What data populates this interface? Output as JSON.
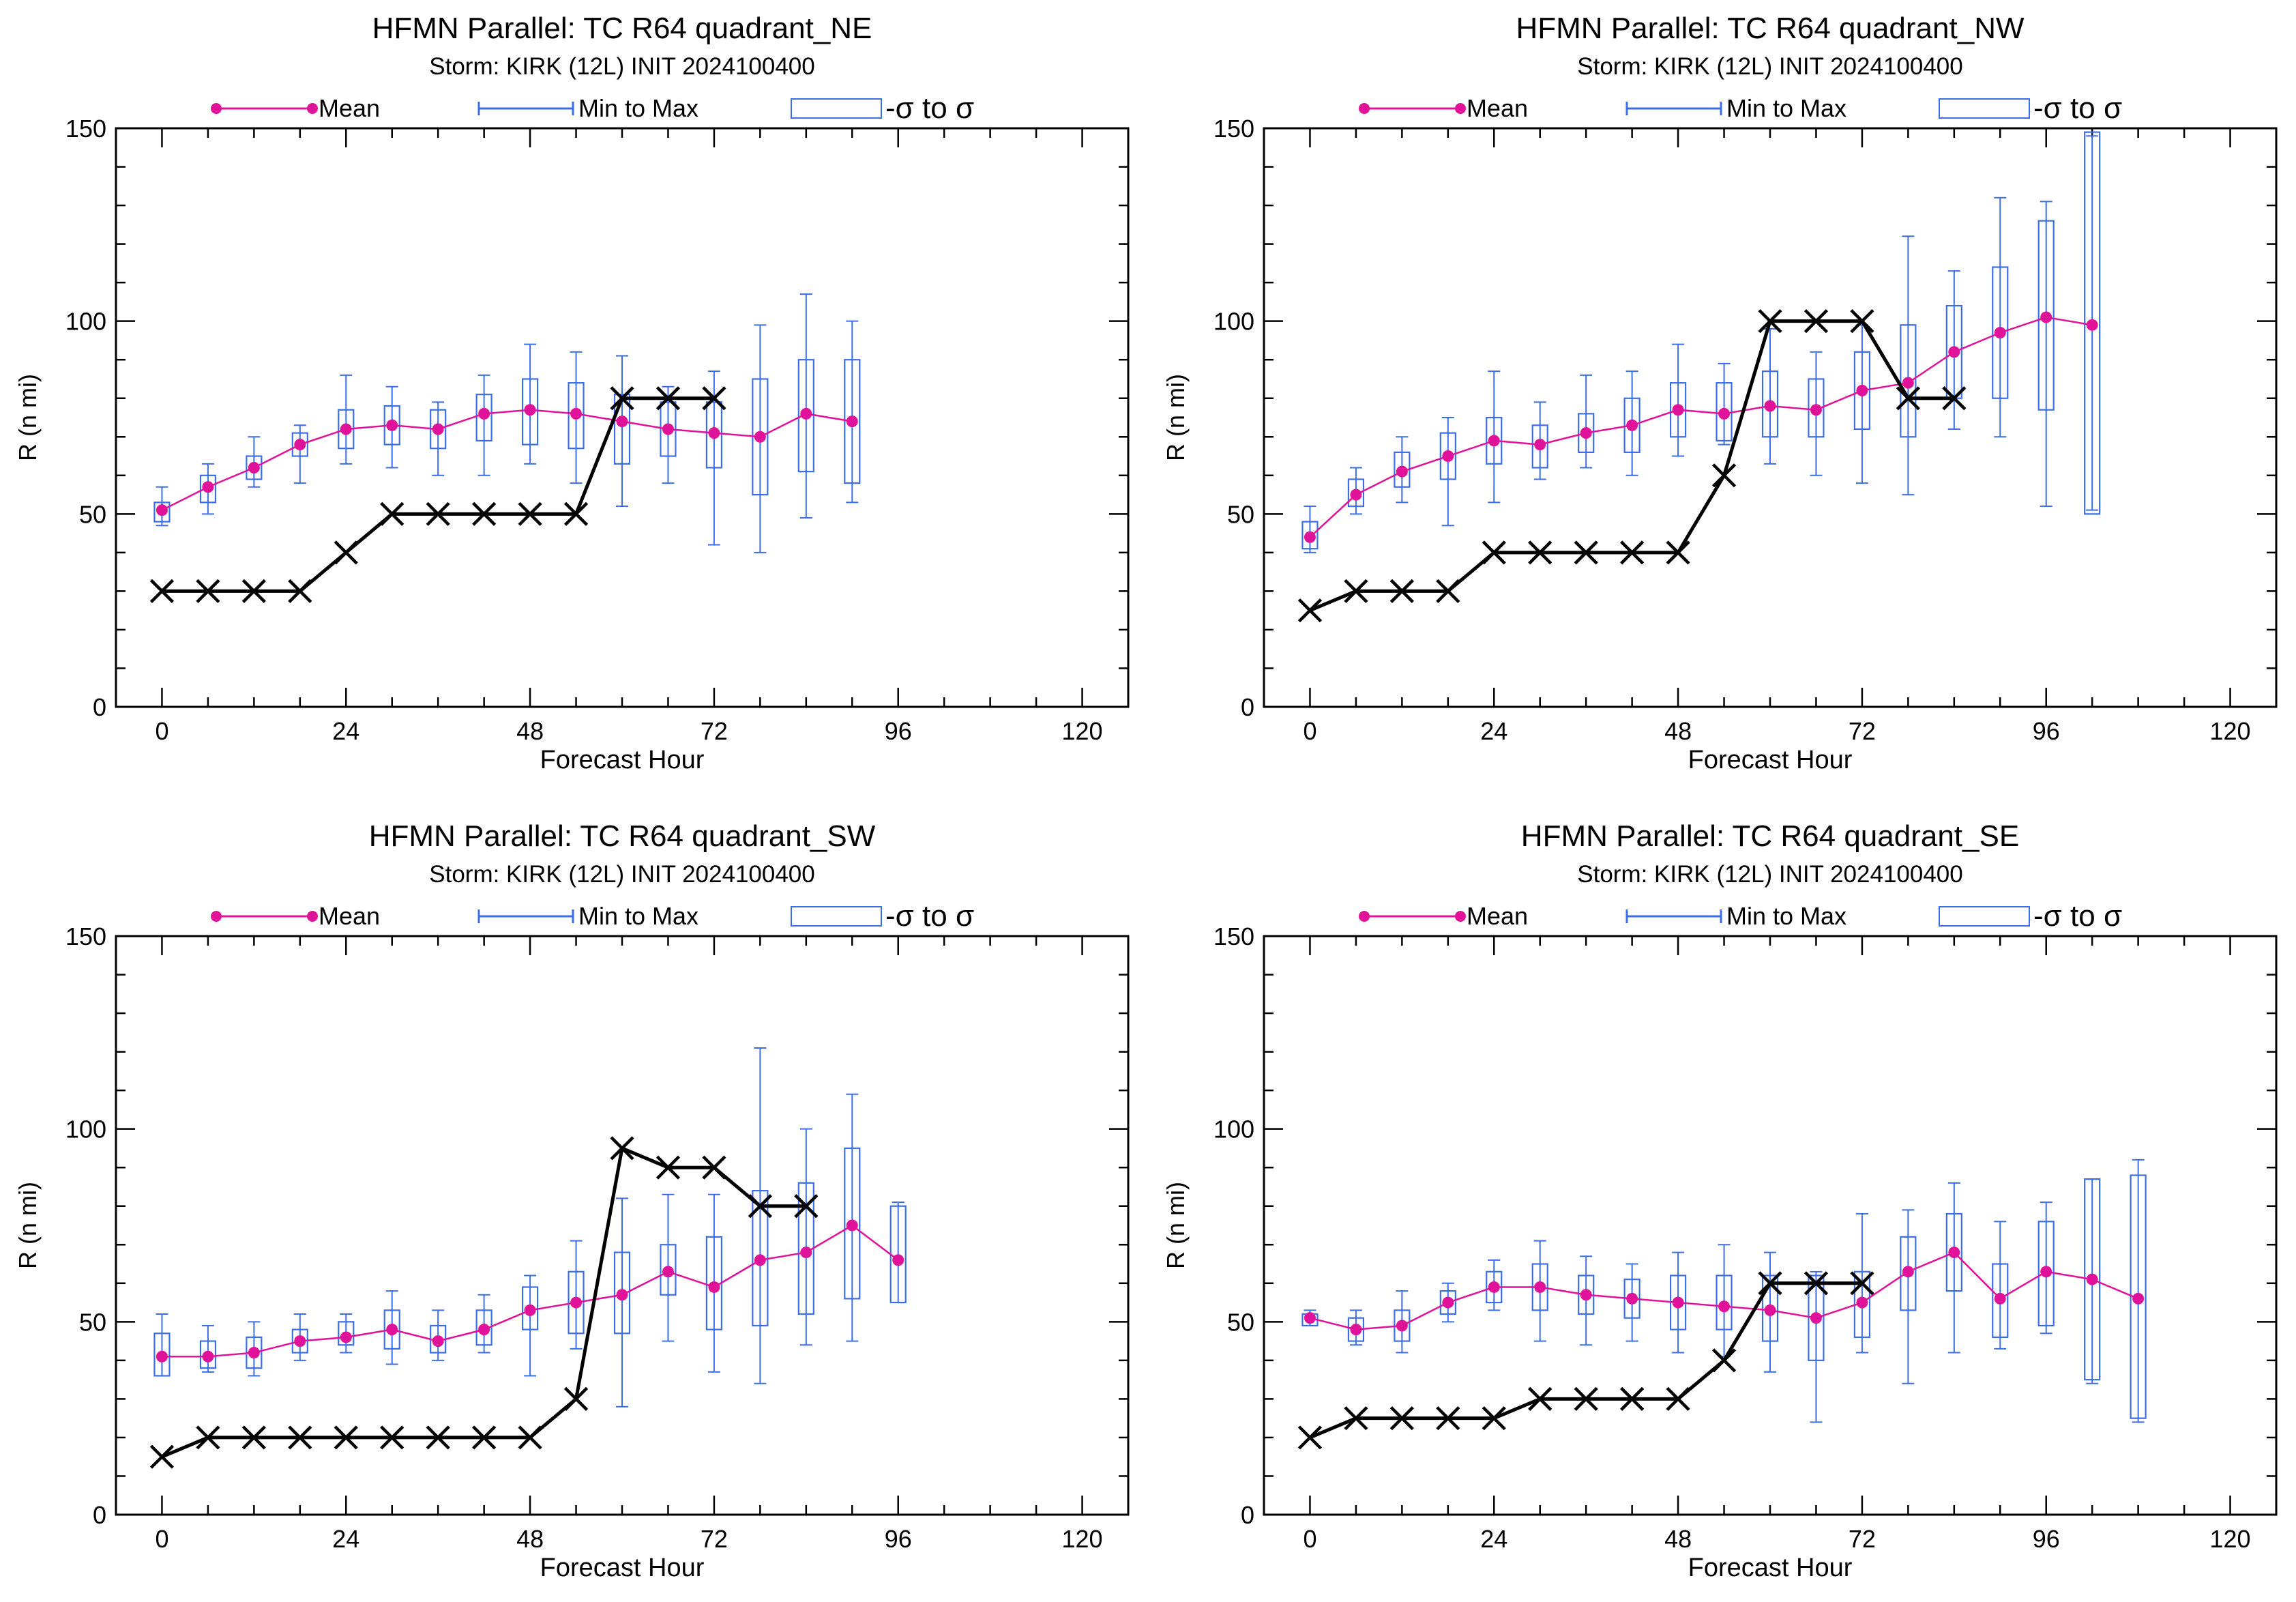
{
  "chart_data": [
    {
      "type": "line",
      "title": "HFMN Parallel: TC  R64 quadrant_NE",
      "subtitle": "Storm: KIRK (12L) INIT 2024100400",
      "xlabel": "Forecast Hour",
      "ylabel": "R (n mi)",
      "xlim": [
        -6,
        126
      ],
      "ylim": [
        0,
        150
      ],
      "xticks": [
        "0",
        "24",
        "48",
        "72",
        "96",
        "120"
      ],
      "yticks": [
        "0",
        "50",
        "100",
        "150"
      ],
      "legend": {
        "mean": "Mean",
        "range": "Min to Max",
        "sigma": "-σ to σ",
        "position": "top"
      },
      "colors": {
        "mean": "#e0129a",
        "range": "#3d6ee8",
        "best_track": "#000000"
      },
      "series": [
        {
          "name": "Mean",
          "x": [
            0,
            6,
            12,
            18,
            24,
            30,
            36,
            42,
            48,
            54,
            60,
            66,
            72,
            78,
            84,
            90
          ],
          "values": [
            51,
            57,
            62,
            68,
            72,
            73,
            72,
            76,
            77,
            76,
            74,
            72,
            71,
            70,
            76,
            74
          ]
        },
        {
          "name": "Min to Max",
          "x": [
            0,
            6,
            12,
            18,
            24,
            30,
            36,
            42,
            48,
            54,
            60,
            66,
            72,
            78,
            84,
            90
          ],
          "low": [
            47,
            50,
            57,
            58,
            63,
            62,
            60,
            60,
            63,
            58,
            52,
            58,
            42,
            40,
            49,
            53
          ],
          "high": [
            57,
            63,
            70,
            73,
            86,
            83,
            79,
            86,
            94,
            92,
            91,
            83,
            87,
            99,
            107,
            100
          ]
        },
        {
          "name": "-σ to σ",
          "x": [
            0,
            6,
            12,
            18,
            24,
            30,
            36,
            42,
            48,
            54,
            60,
            66,
            72,
            78,
            84,
            90
          ],
          "low": [
            48,
            53,
            59,
            65,
            67,
            68,
            67,
            69,
            68,
            67,
            63,
            65,
            62,
            55,
            61,
            58
          ],
          "high": [
            53,
            60,
            65,
            71,
            77,
            78,
            77,
            81,
            85,
            84,
            81,
            79,
            79,
            85,
            90,
            90
          ]
        },
        {
          "name": "",
          "x": [
            0,
            6,
            12,
            18,
            24,
            30,
            36,
            42,
            48,
            54,
            60,
            66,
            72
          ],
          "values": [
            30,
            30,
            30,
            30,
            40,
            50,
            50,
            50,
            50,
            50,
            80,
            80,
            80
          ]
        }
      ]
    },
    {
      "type": "line",
      "title": "HFMN Parallel: TC  R64 quadrant_NW",
      "subtitle": "Storm: KIRK (12L) INIT 2024100400",
      "xlabel": "Forecast Hour",
      "ylabel": "R (n mi)",
      "xlim": [
        -6,
        126
      ],
      "ylim": [
        0,
        150
      ],
      "xticks": [
        "0",
        "24",
        "48",
        "72",
        "96",
        "120"
      ],
      "yticks": [
        "0",
        "50",
        "100",
        "150"
      ],
      "legend": {
        "mean": "Mean",
        "range": "Min to Max",
        "sigma": "-σ to σ",
        "position": "top"
      },
      "colors": {
        "mean": "#e0129a",
        "range": "#3d6ee8",
        "best_track": "#000000"
      },
      "series": [
        {
          "name": "Mean",
          "x": [
            0,
            6,
            12,
            18,
            24,
            30,
            36,
            42,
            48,
            54,
            60,
            66,
            72,
            78,
            84,
            90,
            96,
            102
          ],
          "values": [
            44,
            55,
            61,
            65,
            69,
            68,
            71,
            73,
            77,
            76,
            78,
            77,
            82,
            84,
            92,
            97,
            101,
            99
          ]
        },
        {
          "name": "Min to Max",
          "x": [
            0,
            6,
            12,
            18,
            24,
            30,
            36,
            42,
            48,
            54,
            60,
            66,
            72,
            78,
            84,
            90,
            96,
            102
          ],
          "low": [
            40,
            50,
            53,
            47,
            53,
            59,
            62,
            60,
            65,
            68,
            63,
            60,
            58,
            55,
            72,
            70,
            52,
            51
          ],
          "high": [
            52,
            62,
            70,
            75,
            87,
            79,
            86,
            87,
            94,
            89,
            98,
            92,
            99,
            122,
            113,
            132,
            131,
            148
          ]
        },
        {
          "name": "-σ to σ",
          "x": [
            0,
            6,
            12,
            18,
            24,
            30,
            36,
            42,
            48,
            54,
            60,
            66,
            72,
            78,
            84,
            90,
            96,
            102
          ],
          "low": [
            41,
            52,
            57,
            59,
            63,
            62,
            66,
            66,
            70,
            69,
            70,
            70,
            72,
            70,
            80,
            80,
            77,
            50
          ],
          "high": [
            48,
            59,
            66,
            71,
            75,
            73,
            76,
            80,
            84,
            84,
            87,
            85,
            92,
            99,
            104,
            114,
            126,
            149
          ]
        },
        {
          "name": "",
          "x": [
            0,
            6,
            12,
            18,
            24,
            30,
            36,
            42,
            48,
            54,
            60,
            66,
            72,
            78,
            84
          ],
          "values": [
            25,
            30,
            30,
            30,
            40,
            40,
            40,
            40,
            40,
            60,
            100,
            100,
            100,
            80,
            80
          ]
        }
      ]
    },
    {
      "type": "line",
      "title": "HFMN Parallel: TC  R64 quadrant_SW",
      "subtitle": "Storm: KIRK (12L) INIT 2024100400",
      "xlabel": "Forecast Hour",
      "ylabel": "R (n mi)",
      "xlim": [
        -6,
        126
      ],
      "ylim": [
        0,
        150
      ],
      "xticks": [
        "0",
        "24",
        "48",
        "72",
        "96",
        "120"
      ],
      "yticks": [
        "0",
        "50",
        "100",
        "150"
      ],
      "legend": {
        "mean": "Mean",
        "range": "Min to Max",
        "sigma": "-σ to σ",
        "position": "top"
      },
      "colors": {
        "mean": "#e0129a",
        "range": "#3d6ee8",
        "best_track": "#000000"
      },
      "series": [
        {
          "name": "Mean",
          "x": [
            0,
            6,
            12,
            18,
            24,
            30,
            36,
            42,
            48,
            54,
            60,
            66,
            72,
            78,
            84,
            90,
            96
          ],
          "values": [
            41,
            41,
            42,
            45,
            46,
            48,
            45,
            48,
            53,
            55,
            57,
            63,
            59,
            66,
            68,
            75,
            66
          ]
        },
        {
          "name": "Min to Max",
          "x": [
            0,
            6,
            12,
            18,
            24,
            30,
            36,
            42,
            48,
            54,
            60,
            66,
            72,
            78,
            84,
            90,
            96
          ],
          "low": [
            36,
            37,
            36,
            40,
            42,
            39,
            40,
            42,
            36,
            43,
            28,
            45,
            37,
            34,
            44,
            45,
            55
          ],
          "high": [
            52,
            49,
            50,
            52,
            52,
            58,
            53,
            57,
            62,
            71,
            82,
            83,
            83,
            121,
            100,
            109,
            81
          ]
        },
        {
          "name": "-σ to σ",
          "x": [
            0,
            6,
            12,
            18,
            24,
            30,
            36,
            42,
            48,
            54,
            60,
            66,
            72,
            78,
            84,
            90,
            96
          ],
          "low": [
            36,
            38,
            38,
            42,
            44,
            43,
            42,
            44,
            48,
            47,
            47,
            57,
            48,
            49,
            52,
            56,
            55
          ],
          "high": [
            47,
            45,
            46,
            48,
            50,
            53,
            49,
            53,
            59,
            63,
            68,
            70,
            72,
            84,
            86,
            95,
            80
          ]
        },
        {
          "name": "",
          "x": [
            0,
            6,
            12,
            18,
            24,
            30,
            36,
            42,
            48,
            54,
            60,
            66,
            72,
            78,
            84
          ],
          "values": [
            15,
            20,
            20,
            20,
            20,
            20,
            20,
            20,
            20,
            30,
            95,
            90,
            90,
            80,
            80
          ]
        }
      ]
    },
    {
      "type": "line",
      "title": "HFMN Parallel: TC  R64 quadrant_SE",
      "subtitle": "Storm: KIRK (12L) INIT 2024100400",
      "xlabel": "Forecast Hour",
      "ylabel": "R (n mi)",
      "xlim": [
        -6,
        126
      ],
      "ylim": [
        0,
        150
      ],
      "xticks": [
        "0",
        "24",
        "48",
        "72",
        "96",
        "120"
      ],
      "yticks": [
        "0",
        "50",
        "100",
        "150"
      ],
      "legend": {
        "mean": "Mean",
        "range": "Min to Max",
        "sigma": "-σ to σ",
        "position": "top"
      },
      "colors": {
        "mean": "#e0129a",
        "range": "#3d6ee8",
        "best_track": "#000000"
      },
      "series": [
        {
          "name": "Mean",
          "x": [
            0,
            6,
            12,
            18,
            24,
            30,
            36,
            42,
            48,
            54,
            60,
            66,
            72,
            78,
            84,
            90,
            96,
            102,
            108
          ],
          "values": [
            51,
            48,
            49,
            55,
            59,
            59,
            57,
            56,
            55,
            54,
            53,
            51,
            55,
            63,
            68,
            56,
            63,
            61,
            56
          ]
        },
        {
          "name": "Min to Max",
          "x": [
            0,
            6,
            12,
            18,
            24,
            30,
            36,
            42,
            48,
            54,
            60,
            66,
            72,
            78,
            84,
            90,
            96,
            102,
            108
          ],
          "low": [
            49,
            44,
            42,
            50,
            53,
            45,
            44,
            45,
            42,
            41,
            37,
            24,
            42,
            34,
            42,
            43,
            47,
            34,
            24
          ],
          "high": [
            53,
            53,
            58,
            60,
            66,
            71,
            67,
            65,
            68,
            70,
            68,
            63,
            78,
            79,
            86,
            76,
            81,
            87,
            92
          ]
        },
        {
          "name": "-σ to σ",
          "x": [
            0,
            6,
            12,
            18,
            24,
            30,
            36,
            42,
            48,
            54,
            60,
            66,
            72,
            78,
            84,
            90,
            96,
            102,
            108
          ],
          "low": [
            49,
            45,
            45,
            52,
            55,
            53,
            52,
            51,
            48,
            48,
            45,
            40,
            46,
            53,
            58,
            46,
            49,
            35,
            25
          ],
          "high": [
            52,
            51,
            53,
            58,
            63,
            65,
            62,
            61,
            62,
            62,
            62,
            62,
            63,
            72,
            78,
            65,
            76,
            87,
            88
          ]
        },
        {
          "name": "",
          "x": [
            0,
            6,
            12,
            18,
            24,
            30,
            36,
            42,
            48,
            54,
            60,
            66,
            72
          ],
          "values": [
            20,
            25,
            25,
            25,
            25,
            30,
            30,
            30,
            30,
            40,
            60,
            60,
            60
          ]
        }
      ]
    }
  ]
}
